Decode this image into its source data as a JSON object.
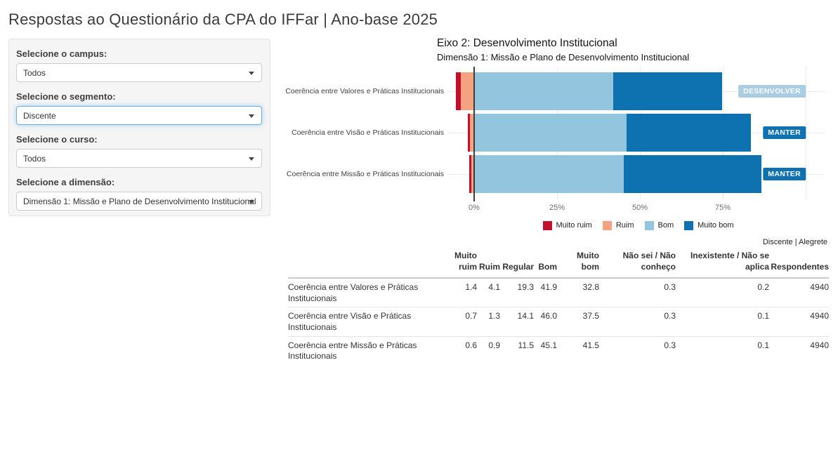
{
  "page": {
    "title": "Respostas ao Questionário da CPA do IFFar | Ano-base 2025"
  },
  "filters": {
    "campus": {
      "label": "Selecione o campus:",
      "value": "Todos"
    },
    "segmento": {
      "label": "Selecione o segmento:",
      "value": "Discente"
    },
    "curso": {
      "label": "Selecione o curso:",
      "value": "Todos"
    },
    "dimensao": {
      "label": "Selecione a dimensão:",
      "value": "Dimensão 1: Missão e Plano de Desenvolvimento Institucional"
    }
  },
  "chart_data": {
    "type": "diverging_stacked_bar",
    "title": "Eixo 2: Desenvolvimento Institucional",
    "subtitle": "Dimensão 1: Missão e Plano de Desenvolvimento Institucional",
    "categories": [
      "Coerência entre Valores e Práticas Institucionais",
      "Coerência entre Visão e Práticas Institucionais",
      "Coerência entre Missão e Práticas Institucionais"
    ],
    "series": [
      {
        "name": "Muito ruim",
        "color": "#c40e2d",
        "direction": "negative",
        "values": [
          1.4,
          0.7,
          0.6
        ]
      },
      {
        "name": "Ruim",
        "color": "#f4a27f",
        "direction": "negative",
        "values": [
          4.1,
          1.3,
          0.9
        ]
      },
      {
        "name": "Bom",
        "color": "#94c5de",
        "direction": "positive",
        "values": [
          41.9,
          46.0,
          45.1
        ]
      },
      {
        "name": "Muito bom",
        "color": "#0e71b0",
        "direction": "positive",
        "values": [
          32.8,
          37.5,
          41.5
        ]
      }
    ],
    "badges": [
      {
        "label": "DESENVOLVER",
        "color": "#a9cee3"
      },
      {
        "label": "MANTER",
        "color": "#0e71b0"
      },
      {
        "label": "MANTER",
        "color": "#0e71b0"
      }
    ],
    "x_axis": {
      "ticks": [
        {
          "label": "0%",
          "value": 0
        },
        {
          "label": "25%",
          "value": 25
        },
        {
          "label": "50%",
          "value": 50
        },
        {
          "label": "75%",
          "value": 75
        }
      ],
      "gridlines": [
        25,
        50,
        75,
        100
      ]
    },
    "xlim": [
      -10,
      100
    ],
    "legend_position": "bottom-center",
    "zero_line": true
  },
  "table": {
    "caption": "Discente | Alegrete",
    "headers": [
      "",
      "Muito\nruim",
      "Ruim",
      "Regular",
      "Bom",
      "Muito\nbom",
      "Não sei / Não\nconheço",
      "Inexistente / Não se\naplica",
      "Respondentes"
    ],
    "rows": [
      {
        "label": "Coerência entre Valores e Práticas Institucionais",
        "values": [
          "1.4",
          "4.1",
          "19.3",
          "41.9",
          "32.8",
          "0.3",
          "0.2",
          "4940"
        ]
      },
      {
        "label": "Coerência entre Visão e Práticas Institucionais",
        "values": [
          "0.7",
          "1.3",
          "14.1",
          "46.0",
          "37.5",
          "0.3",
          "0.1",
          "4940"
        ]
      },
      {
        "label": "Coerência entre Missão e Práticas Institucionais",
        "values": [
          "0.6",
          "0.9",
          "11.5",
          "45.1",
          "41.5",
          "0.3",
          "0.1",
          "4940"
        ]
      }
    ]
  }
}
